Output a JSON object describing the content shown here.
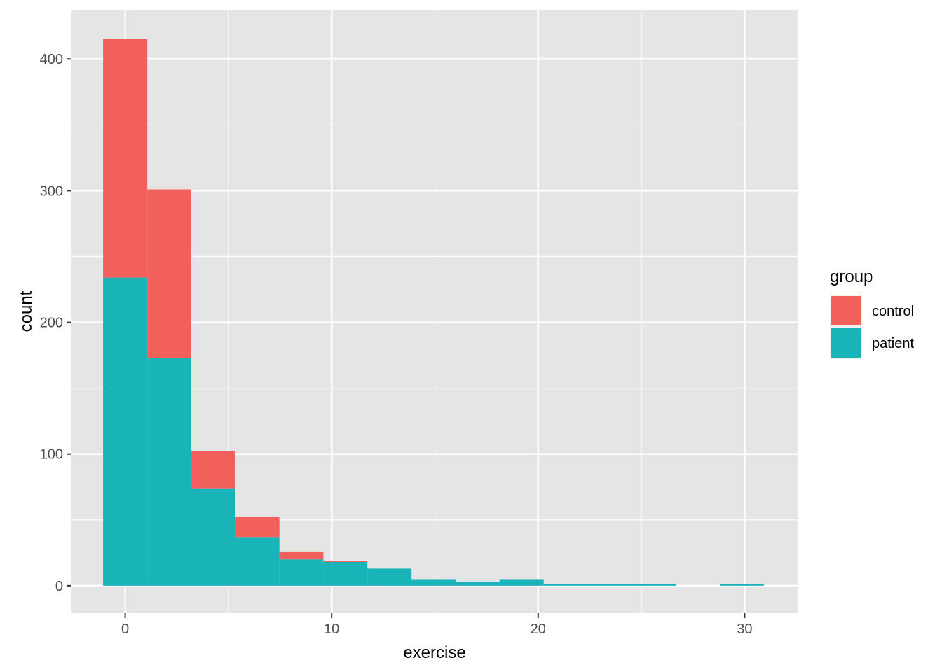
{
  "chart_data": {
    "type": "histogram",
    "stacked": true,
    "xlabel": "exercise",
    "ylabel": "count",
    "xlim": [
      -2.6,
      32.6
    ],
    "ylim": [
      -20.8,
      436.8
    ],
    "x_ticks": [
      0,
      10,
      20,
      30
    ],
    "x_tick_labels": [
      "0",
      "10",
      "20",
      "30"
    ],
    "y_ticks": [
      0,
      100,
      200,
      300,
      400
    ],
    "y_tick_labels": [
      "0",
      "100",
      "200",
      "300",
      "400"
    ],
    "grid": true,
    "bins": [
      {
        "x0": -1.07,
        "x1": 1.07
      },
      {
        "x0": 1.07,
        "x1": 3.2
      },
      {
        "x0": 3.2,
        "x1": 5.33
      },
      {
        "x0": 5.33,
        "x1": 7.47
      },
      {
        "x0": 7.47,
        "x1": 9.6
      },
      {
        "x0": 9.6,
        "x1": 11.73
      },
      {
        "x0": 11.73,
        "x1": 13.87
      },
      {
        "x0": 13.87,
        "x1": 16.0
      },
      {
        "x0": 16.0,
        "x1": 18.13
      },
      {
        "x0": 18.13,
        "x1": 20.27
      },
      {
        "x0": 20.27,
        "x1": 22.4
      },
      {
        "x0": 22.4,
        "x1": 24.53
      },
      {
        "x0": 24.53,
        "x1": 26.67
      },
      {
        "x0": 26.67,
        "x1": 28.8
      },
      {
        "x0": 28.8,
        "x1": 30.93
      }
    ],
    "series": [
      {
        "name": "patient",
        "color": "#19B4B8",
        "values": [
          234,
          173,
          74,
          37,
          20,
          18,
          13,
          5,
          3,
          5,
          1,
          1,
          1,
          0,
          1
        ]
      },
      {
        "name": "control",
        "color": "#F2605C",
        "values": [
          181,
          128,
          28,
          15,
          6,
          1,
          0,
          0,
          0,
          0,
          0,
          0,
          0,
          0,
          0
        ]
      }
    ],
    "legend": {
      "title": "group",
      "position": "right",
      "entries": [
        {
          "label": "control",
          "color": "#F2605C"
        },
        {
          "label": "patient",
          "color": "#19B4B8"
        }
      ]
    },
    "panel_background": "#E5E5E5",
    "grid_color": "#FFFFFF"
  }
}
